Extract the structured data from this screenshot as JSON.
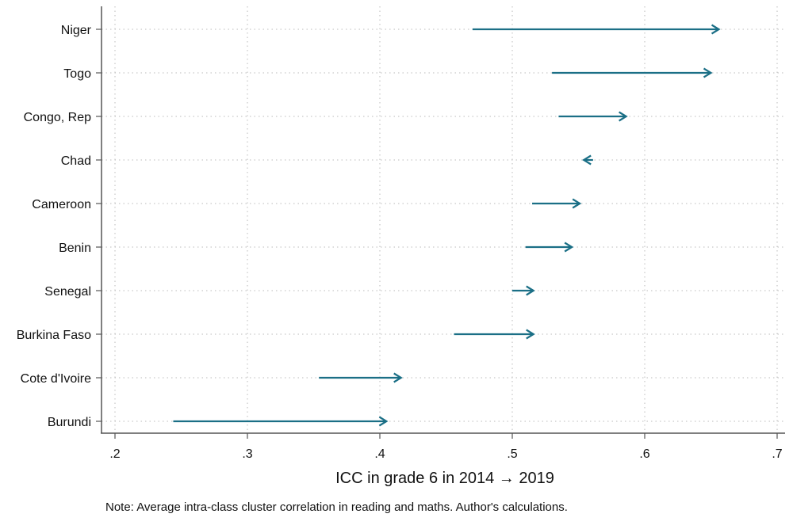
{
  "chart_data": {
    "type": "arrow-dot",
    "title": "",
    "xlabel": "ICC in grade 6 in 2014 → 2019",
    "ylabel": "",
    "xlim": [
      0.2,
      0.7
    ],
    "xticks": [
      0.2,
      0.3,
      0.4,
      0.5,
      0.6,
      0.7
    ],
    "xtick_labels": [
      ".2",
      ".3",
      ".4",
      ".5",
      ".6",
      ".7"
    ],
    "grid": true,
    "arrow_color": "#1b6f86",
    "categories": [
      "Niger",
      "Togo",
      "Congo, Rep",
      "Chad",
      "Cameroon",
      "Benin",
      "Senegal",
      "Burkina Faso",
      "Cote d'Ivoire",
      "Burundi"
    ],
    "series": [
      {
        "values_2014": [
          0.47,
          0.53,
          0.535,
          0.561,
          0.515,
          0.51,
          0.5,
          0.456,
          0.354,
          0.244
        ],
        "values_2019": [
          0.656,
          0.65,
          0.586,
          0.554,
          0.551,
          0.545,
          0.516,
          0.516,
          0.416,
          0.405
        ]
      }
    ],
    "note": "Note: Average intra-class cluster correlation in reading and maths. Author's calculations."
  }
}
